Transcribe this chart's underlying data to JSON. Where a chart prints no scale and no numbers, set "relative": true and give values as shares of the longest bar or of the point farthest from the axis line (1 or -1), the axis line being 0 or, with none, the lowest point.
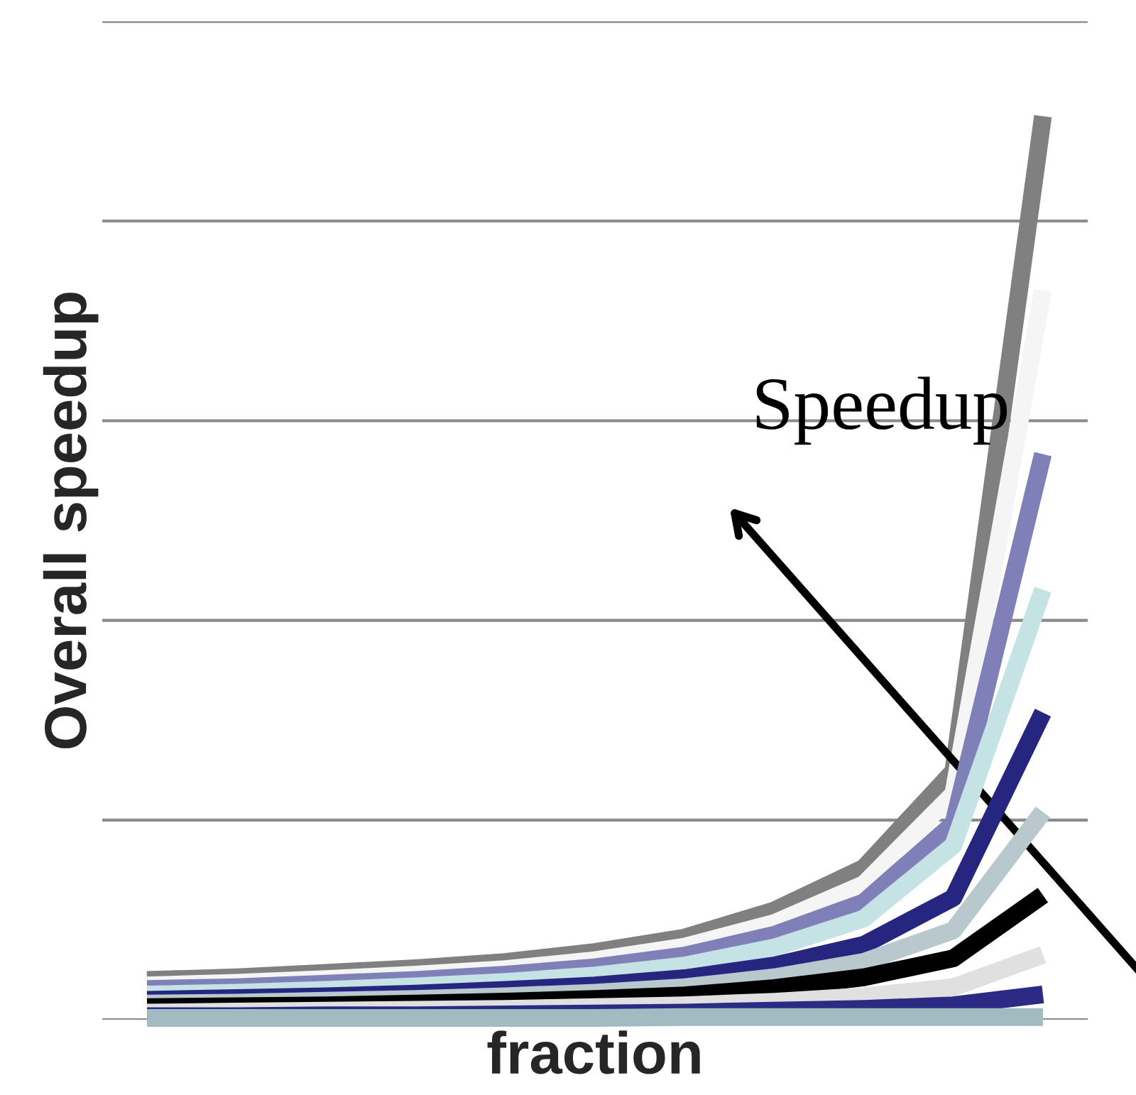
{
  "chart_data": {
    "type": "line",
    "relative": true,
    "xlabel": "fraction",
    "ylabel": "Overall speedup",
    "annotations": [
      "Speedup"
    ],
    "grid": "y",
    "legend": false,
    "marker": "none",
    "line_style": "solid",
    "categories": [
      null,
      null,
      null,
      null,
      null,
      null,
      null,
      null,
      null,
      null,
      null
    ],
    "series": [
      {
        "color": "#808080",
        "values": [
          0.044,
          0.047,
          0.052,
          0.057,
          0.064,
          0.075,
          0.091,
          0.121,
          0.168,
          0.275,
          1
        ]
      },
      {
        "color": "#f5f5f5",
        "values": [
          0.038,
          0.041,
          0.045,
          0.05,
          0.056,
          0.066,
          0.081,
          0.107,
          0.15,
          0.25,
          0.807
        ]
      },
      {
        "color": "#8080b8",
        "values": [
          0.034,
          0.036,
          0.04,
          0.044,
          0.05,
          0.058,
          0.071,
          0.094,
          0.13,
          0.217,
          0.626
        ]
      },
      {
        "color": "#c5e3e5",
        "values": [
          0.028,
          0.03,
          0.033,
          0.037,
          0.042,
          0.049,
          0.06,
          0.08,
          0.112,
          0.193,
          0.476
        ]
      },
      {
        "color": "#262680",
        "values": [
          0.022,
          0.024,
          0.026,
          0.029,
          0.033,
          0.038,
          0.046,
          0.06,
          0.083,
          0.135,
          0.34
        ]
      },
      {
        "color": "#b8c8cc",
        "values": [
          0.018,
          0.019,
          0.021,
          0.023,
          0.026,
          0.03,
          0.036,
          0.047,
          0.064,
          0.099,
          0.23
        ]
      },
      {
        "color": "#000000",
        "values": [
          0.014,
          0.015,
          0.016,
          0.018,
          0.02,
          0.023,
          0.027,
          0.035,
          0.047,
          0.068,
          0.138
        ]
      },
      {
        "color": "#e0e0e0",
        "values": [
          0.008,
          0.009,
          0.01,
          0.011,
          0.012,
          0.014,
          0.016,
          0.02,
          0.026,
          0.036,
          0.072
        ]
      },
      {
        "color": "#2b2b85",
        "values": [
          0.004,
          0.004,
          0.005,
          0.005,
          0.006,
          0.007,
          0.008,
          0.01,
          0.012,
          0.016,
          0.028
        ]
      },
      {
        "color": "#a0bcc0",
        "values": [
          0.002,
          0.002,
          0.002,
          0.002,
          0.002,
          0.002,
          0.003,
          0.003,
          0.003,
          0.003,
          0.003
        ]
      }
    ]
  }
}
